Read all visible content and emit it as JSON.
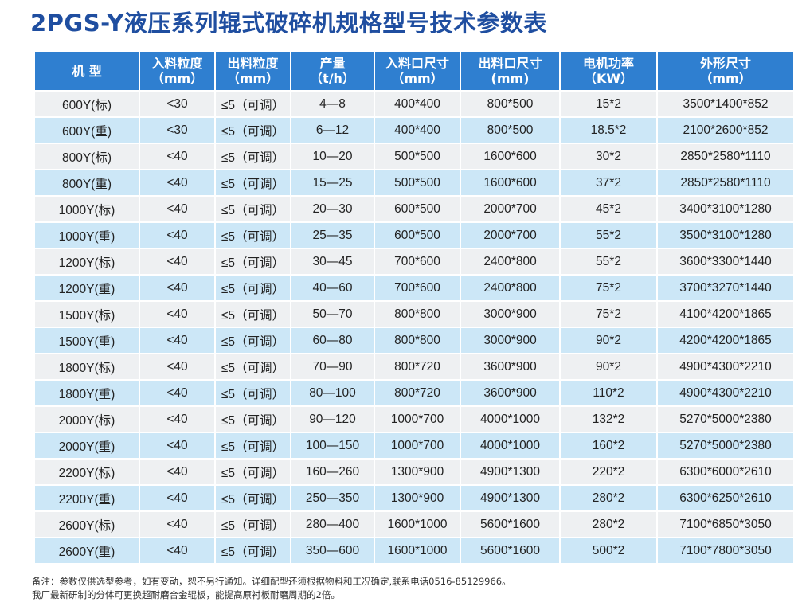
{
  "title": "2PGS-Y液压系列辊式破碎机规格型号技术参数表",
  "headers": [
    {
      "label": "机 型",
      "unit": ""
    },
    {
      "label": "入料粒度",
      "unit": "（mm）"
    },
    {
      "label": "出料粒度",
      "unit": "（mm）"
    },
    {
      "label": "产量",
      "unit": "（t/h）"
    },
    {
      "label": "入料口尺寸",
      "unit": "（mm）"
    },
    {
      "label": "出料口尺寸",
      "unit": "(mm)"
    },
    {
      "label": "电机功率",
      "unit": "（KW）"
    },
    {
      "label": "外形尺寸",
      "unit": "（mm）"
    }
  ],
  "rows": [
    [
      "600Y(标)",
      "<30",
      "≤5（可调）",
      "4—8",
      "400*400",
      "800*500",
      "15*2",
      "3500*1400*852"
    ],
    [
      "600Y(重)",
      "<30",
      "≤5（可调）",
      "6—12",
      "400*400",
      "800*500",
      "18.5*2",
      "2100*2600*852"
    ],
    [
      "800Y(标)",
      "<40",
      "≤5（可调）",
      "10—20",
      "500*500",
      "1600*600",
      "30*2",
      "2850*2580*1110"
    ],
    [
      "800Y(重)",
      "<40",
      "≤5（可调）",
      "15—25",
      "500*500",
      "1600*600",
      "37*2",
      "2850*2580*1110"
    ],
    [
      "1000Y(标)",
      "<40",
      "≤5（可调）",
      "20—30",
      "600*500",
      "2000*700",
      "45*2",
      "3400*3100*1280"
    ],
    [
      "1000Y(重)",
      "<40",
      "≤5（可调）",
      "25—35",
      "600*500",
      "2000*700",
      "55*2",
      "3500*3100*1280"
    ],
    [
      "1200Y(标)",
      "<40",
      "≤5（可调）",
      "30—45",
      "700*600",
      "2400*800",
      "55*2",
      "3600*3300*1440"
    ],
    [
      "1200Y(重)",
      "<40",
      "≤5（可调）",
      "40—60",
      "700*600",
      "2400*800",
      "75*2",
      "3700*3270*1440"
    ],
    [
      "1500Y(标)",
      "<40",
      "≤5（可调）",
      "50—70",
      "800*800",
      "3000*900",
      "75*2",
      "4100*4200*1865"
    ],
    [
      "1500Y(重)",
      "<40",
      "≤5（可调）",
      "60—80",
      "800*800",
      "3000*900",
      "90*2",
      "4200*4200*1865"
    ],
    [
      "1800Y(标)",
      "<40",
      "≤5（可调）",
      "70—90",
      "800*720",
      "3600*900",
      "90*2",
      "4900*4300*2210"
    ],
    [
      "1800Y(重)",
      "<40",
      "≤5（可调）",
      "80—100",
      "800*720",
      "3600*900",
      "110*2",
      "4900*4300*2210"
    ],
    [
      "2000Y(标)",
      "<40",
      "≤5（可调）",
      "90—120",
      "1000*700",
      "4000*1000",
      "132*2",
      "5270*5000*2380"
    ],
    [
      "2000Y(重)",
      "<40",
      "≤5（可调）",
      "100—150",
      "1000*700",
      "4000*1000",
      "160*2",
      "5270*5000*2380"
    ],
    [
      "2200Y(标)",
      "<40",
      "≤5（可调）",
      "160—260",
      "1300*900",
      "4900*1300",
      "220*2",
      "6300*6000*2610"
    ],
    [
      "2200Y(重)",
      "<40",
      "≤5（可调）",
      "250—350",
      "1300*900",
      "4900*1300",
      "280*2",
      "6300*6250*2610"
    ],
    [
      "2600Y(标)",
      "<40",
      "≤5（可调）",
      "280—400",
      "1600*1000",
      "5600*1600",
      "280*2",
      "7100*6850*3050"
    ],
    [
      "2600Y(重)",
      "<40",
      "≤5（可调）",
      "350—600",
      "1600*1000",
      "5600*1600",
      "500*2",
      "7100*7800*3050"
    ]
  ],
  "notes": [
    "备注：参数仅供选型参考，如有变动，恕不另行通知。详细配型还须根据物料和工况确定,联系电话0516-85129966。",
    "我厂最新研制的分体可更换超耐磨合金辊板，能提高原衬板耐磨周期的2倍。"
  ],
  "colors": {
    "title": "#1f4ea0",
    "header_bg": "#2f7fd0",
    "row_light": "#eef0f2",
    "row_blue": "#cce7f7"
  }
}
